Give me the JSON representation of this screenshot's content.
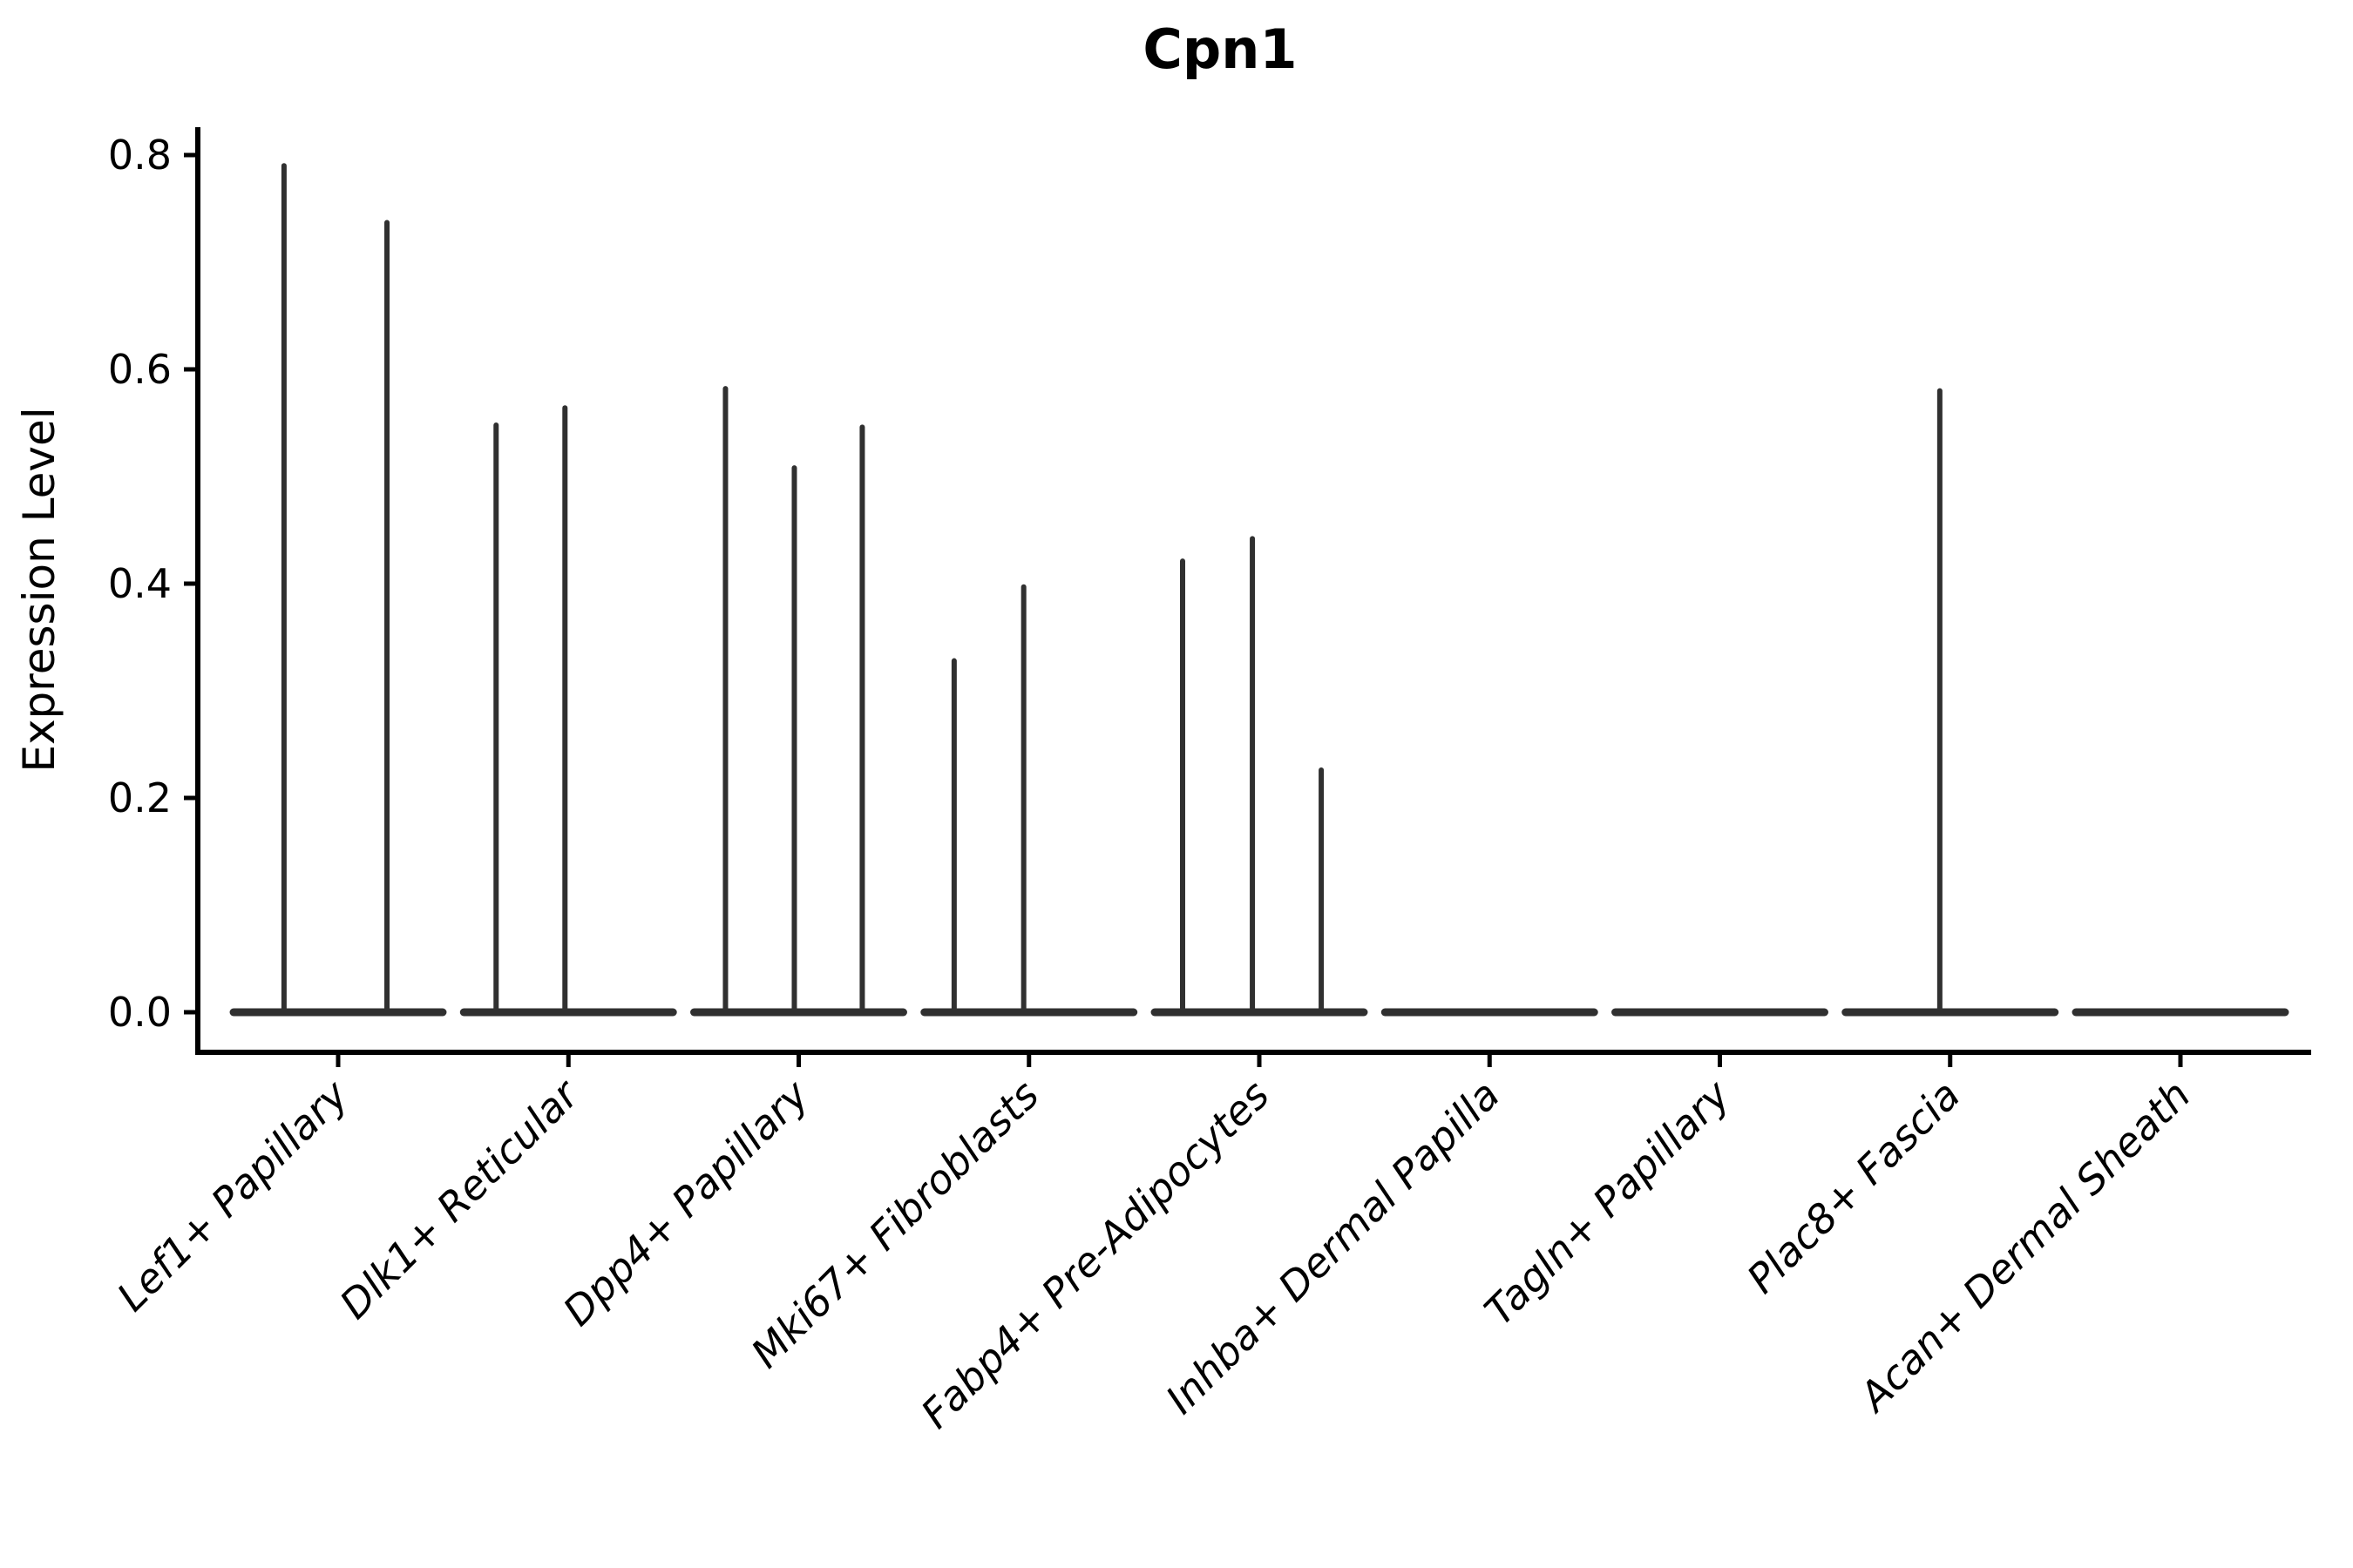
{
  "figure": {
    "title": "Cpn1",
    "ylabel": "Expression Level"
  },
  "chart_data": {
    "type": "violin",
    "title": "Cpn1",
    "xlabel": "",
    "ylabel": "Expression Level",
    "ylim": [
      -0.037,
      0.826
    ],
    "yticks": [
      0.0,
      0.2,
      0.4,
      0.6,
      0.8
    ],
    "ytick_labels": [
      "0.0",
      "0.2",
      "0.4",
      "0.6",
      "0.8"
    ],
    "grid": false,
    "legend_position": "none",
    "categories": [
      "Lef1+ Papillary",
      "Dlk1+ Reticular",
      "Dpp4+ Papillary",
      "Mki67+ Fibroblasts",
      "Fabp4+ Pre-Adipocytes",
      "Inhba+ Dermal Papilla",
      "Tagln+ Papillary",
      "Plac8+ Fascia",
      "Acan+ Dermal Sheath"
    ],
    "violins": [
      {
        "category": "Lef1+ Papillary",
        "baseline_value": 0.0,
        "spikes": [
          {
            "dx": -0.235,
            "max": 0.79
          },
          {
            "dx": 0.212,
            "max": 0.737
          }
        ]
      },
      {
        "category": "Dlk1+ Reticular",
        "baseline_value": 0.0,
        "spikes": [
          {
            "dx": -0.314,
            "max": 0.548
          },
          {
            "dx": -0.015,
            "max": 0.564
          }
        ]
      },
      {
        "category": "Dpp4+ Papillary",
        "baseline_value": 0.0,
        "spikes": [
          {
            "dx": -0.318,
            "max": 0.582
          },
          {
            "dx": -0.019,
            "max": 0.508
          },
          {
            "dx": 0.276,
            "max": 0.546
          }
        ]
      },
      {
        "category": "Mki67+ Fibroblasts",
        "baseline_value": 0.0,
        "spikes": [
          {
            "dx": -0.325,
            "max": 0.328
          },
          {
            "dx": -0.023,
            "max": 0.397
          }
        ]
      },
      {
        "category": "Fabp4+ Pre-Adipocytes",
        "baseline_value": 0.0,
        "spikes": [
          {
            "dx": -0.333,
            "max": 0.421
          },
          {
            "dx": -0.03,
            "max": 0.442
          },
          {
            "dx": 0.269,
            "max": 0.226
          }
        ]
      },
      {
        "category": "Inhba+ Dermal Papilla",
        "baseline_value": 0.0,
        "spikes": []
      },
      {
        "category": "Tagln+ Papillary",
        "baseline_value": 0.0,
        "spikes": []
      },
      {
        "category": "Plac8+ Fascia",
        "baseline_value": 0.0,
        "spikes": [
          {
            "dx": -0.045,
            "max": 0.58
          }
        ]
      },
      {
        "category": "Acan+ Dermal Sheath",
        "baseline_value": 0.0,
        "spikes": []
      }
    ],
    "baseline_half_width": 0.454,
    "colors": {
      "violin": "#303030",
      "axis": "#000000",
      "text": "#000000",
      "background": "#ffffff"
    }
  }
}
